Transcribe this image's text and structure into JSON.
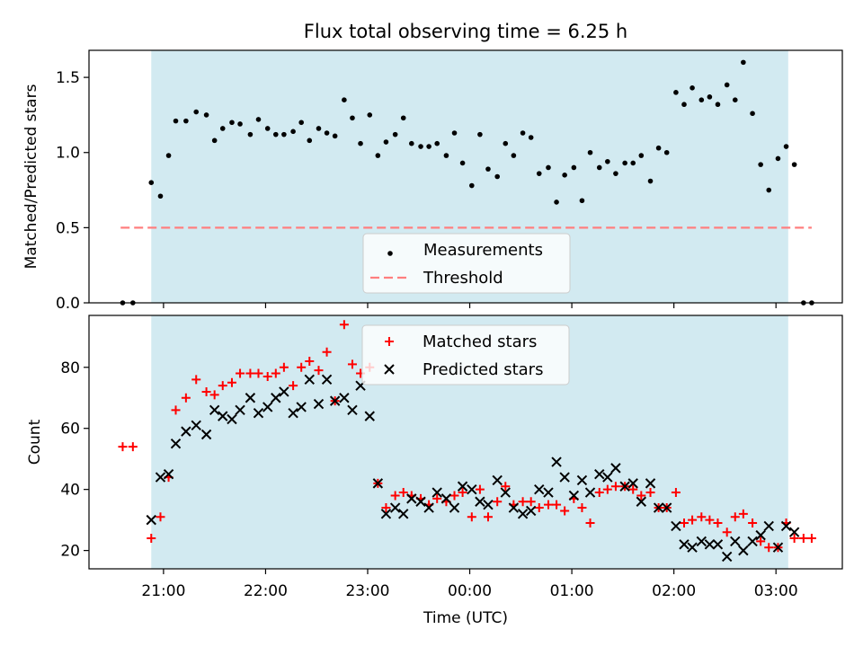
{
  "title": "Flux total observing time = 6.25 h",
  "colors": {
    "shade": "#add8e6",
    "measurement": "#000000",
    "threshold": "#ff7f7f",
    "matched": "#ff0000",
    "predicted": "#000000"
  },
  "chart_data": [
    {
      "type": "scatter",
      "ylabel": "Matched/Predicted stars",
      "xlim": [
        20.27,
        3.65
      ],
      "ylim": [
        0,
        1.68
      ],
      "yticks": [
        "0.0",
        "0.5",
        "1.0",
        "1.5"
      ],
      "shaded_span": [
        20.88,
        3.12
      ],
      "legend": {
        "placement": "lower-center",
        "entries": [
          "Measurements",
          "Threshold"
        ]
      },
      "threshold": {
        "name": "Threshold",
        "y": 0.5,
        "x_from": 20.58,
        "x_to": 3.35
      },
      "series": [
        {
          "name": "Measurements",
          "marker": "dot",
          "x": [
            20.6,
            20.7,
            20.88,
            20.97,
            21.05,
            21.12,
            21.22,
            21.32,
            21.42,
            21.5,
            21.58,
            21.67,
            21.75,
            21.85,
            21.93,
            22.02,
            22.1,
            22.18,
            22.27,
            22.35,
            22.43,
            22.52,
            22.6,
            22.68,
            22.77,
            22.85,
            22.93,
            23.02,
            23.1,
            23.18,
            23.27,
            23.35,
            23.43,
            23.52,
            23.6,
            23.68,
            23.77,
            23.85,
            23.93,
            24.02,
            24.1,
            24.18,
            24.27,
            24.35,
            24.43,
            24.52,
            24.6,
            24.68,
            24.77,
            24.85,
            24.93,
            25.02,
            25.1,
            25.18,
            25.27,
            25.35,
            25.43,
            25.52,
            25.6,
            25.68,
            25.77,
            25.85,
            25.93,
            26.02,
            26.1,
            26.18,
            26.27,
            26.35,
            26.43,
            26.52,
            26.6,
            26.68,
            26.77,
            26.85,
            26.93,
            27.02,
            27.1,
            27.18,
            27.27,
            27.35
          ],
          "y": [
            0,
            0,
            0.8,
            0.71,
            0.98,
            1.21,
            1.21,
            1.27,
            1.25,
            1.08,
            1.16,
            1.2,
            1.19,
            1.12,
            1.22,
            1.16,
            1.12,
            1.12,
            1.14,
            1.2,
            1.08,
            1.16,
            1.13,
            1.11,
            1.35,
            1.23,
            1.06,
            1.25,
            0.98,
            1.07,
            1.12,
            1.23,
            1.06,
            1.04,
            1.04,
            1.06,
            0.98,
            1.13,
            0.93,
            0.78,
            1.12,
            0.89,
            0.84,
            1.06,
            0.98,
            1.13,
            1.1,
            0.86,
            0.9,
            0.67,
            0.85,
            0.9,
            0.68,
            1.0,
            0.9,
            0.94,
            0.86,
            0.93,
            0.93,
            0.98,
            0.81,
            1.03,
            1.0,
            1.4,
            1.32,
            1.43,
            1.35,
            1.37,
            1.32,
            1.45,
            1.35,
            1.6,
            1.26,
            0.92,
            0.75,
            0.96,
            1.04,
            0.92,
            0,
            0
          ]
        }
      ]
    },
    {
      "type": "scatter",
      "xlabel": "Time (UTC)",
      "ylabel": "Count",
      "xlim": [
        20.27,
        3.65
      ],
      "ylim": [
        14,
        97
      ],
      "yticks": [
        "20",
        "40",
        "60",
        "80"
      ],
      "xticks": [
        "21:00",
        "22:00",
        "23:00",
        "00:00",
        "01:00",
        "02:00",
        "03:00"
      ],
      "shaded_span": [
        20.88,
        3.12
      ],
      "legend": {
        "placement": "upper-center",
        "entries": [
          "Matched stars",
          "Predicted stars"
        ]
      },
      "series": [
        {
          "name": "Matched stars",
          "marker": "plus",
          "x": [
            20.6,
            20.7,
            20.88,
            20.97,
            21.05,
            21.12,
            21.22,
            21.32,
            21.42,
            21.5,
            21.58,
            21.67,
            21.75,
            21.85,
            21.93,
            22.02,
            22.1,
            22.18,
            22.27,
            22.35,
            22.43,
            22.52,
            22.6,
            22.68,
            22.77,
            22.85,
            22.93,
            23.02,
            23.1,
            23.18,
            23.27,
            23.35,
            23.43,
            23.52,
            23.6,
            23.68,
            23.77,
            23.85,
            23.93,
            24.02,
            24.1,
            24.18,
            24.27,
            24.35,
            24.43,
            24.52,
            24.6,
            24.68,
            24.77,
            24.85,
            24.93,
            25.02,
            25.1,
            25.18,
            25.27,
            25.35,
            25.43,
            25.52,
            25.6,
            25.68,
            25.77,
            25.85,
            25.93,
            26.02,
            26.1,
            26.18,
            26.27,
            26.35,
            26.43,
            26.52,
            26.6,
            26.68,
            26.77,
            26.85,
            26.93,
            27.02,
            27.1,
            27.18,
            27.27,
            27.35
          ],
          "y": [
            54,
            54,
            24,
            31,
            44,
            66,
            70,
            76,
            72,
            71,
            74,
            75,
            78,
            78,
            78,
            77,
            78,
            80,
            74,
            80,
            82,
            79,
            85,
            69,
            94,
            81,
            78,
            80,
            42,
            34,
            38,
            39,
            38,
            37,
            35,
            37,
            36,
            38,
            39,
            31,
            40,
            31,
            36,
            41,
            35,
            36,
            36,
            34,
            35,
            35,
            33,
            37,
            34,
            29,
            39,
            40,
            41,
            41,
            40,
            38,
            39,
            34,
            34,
            39,
            29,
            30,
            31,
            30,
            29,
            26,
            31,
            32,
            29,
            23,
            21,
            21,
            29,
            24,
            24,
            24
          ]
        },
        {
          "name": "Predicted stars",
          "marker": "x",
          "x": [
            20.88,
            20.97,
            21.05,
            21.12,
            21.22,
            21.32,
            21.42,
            21.5,
            21.58,
            21.67,
            21.75,
            21.85,
            21.93,
            22.02,
            22.1,
            22.18,
            22.27,
            22.35,
            22.43,
            22.52,
            22.6,
            22.68,
            22.77,
            22.85,
            22.93,
            23.02,
            23.1,
            23.18,
            23.27,
            23.35,
            23.43,
            23.52,
            23.6,
            23.68,
            23.77,
            23.85,
            23.93,
            24.02,
            24.1,
            24.18,
            24.27,
            24.35,
            24.43,
            24.52,
            24.6,
            24.68,
            24.77,
            24.85,
            24.93,
            25.02,
            25.1,
            25.18,
            25.27,
            25.35,
            25.43,
            25.52,
            25.6,
            25.68,
            25.77,
            25.85,
            25.93,
            26.02,
            26.1,
            26.18,
            26.27,
            26.35,
            26.43,
            26.52,
            26.6,
            26.68,
            26.77,
            26.85,
            26.93,
            27.02,
            27.1,
            27.18
          ],
          "y": [
            30,
            44,
            45,
            55,
            59,
            61,
            58,
            66,
            64,
            63,
            66,
            70,
            65,
            67,
            70,
            72,
            65,
            67,
            76,
            68,
            76,
            69,
            70,
            66,
            74,
            64,
            42,
            32,
            34,
            32,
            37,
            36,
            34,
            39,
            37,
            34,
            41,
            40,
            36,
            35,
            43,
            39,
            34,
            32,
            33,
            40,
            39,
            49,
            44,
            38,
            43,
            39,
            45,
            44,
            47,
            41,
            42,
            36,
            42,
            34,
            34,
            28,
            22,
            21,
            23,
            22,
            22,
            18,
            23,
            20,
            23,
            25,
            28,
            21,
            28,
            26
          ]
        }
      ]
    }
  ]
}
